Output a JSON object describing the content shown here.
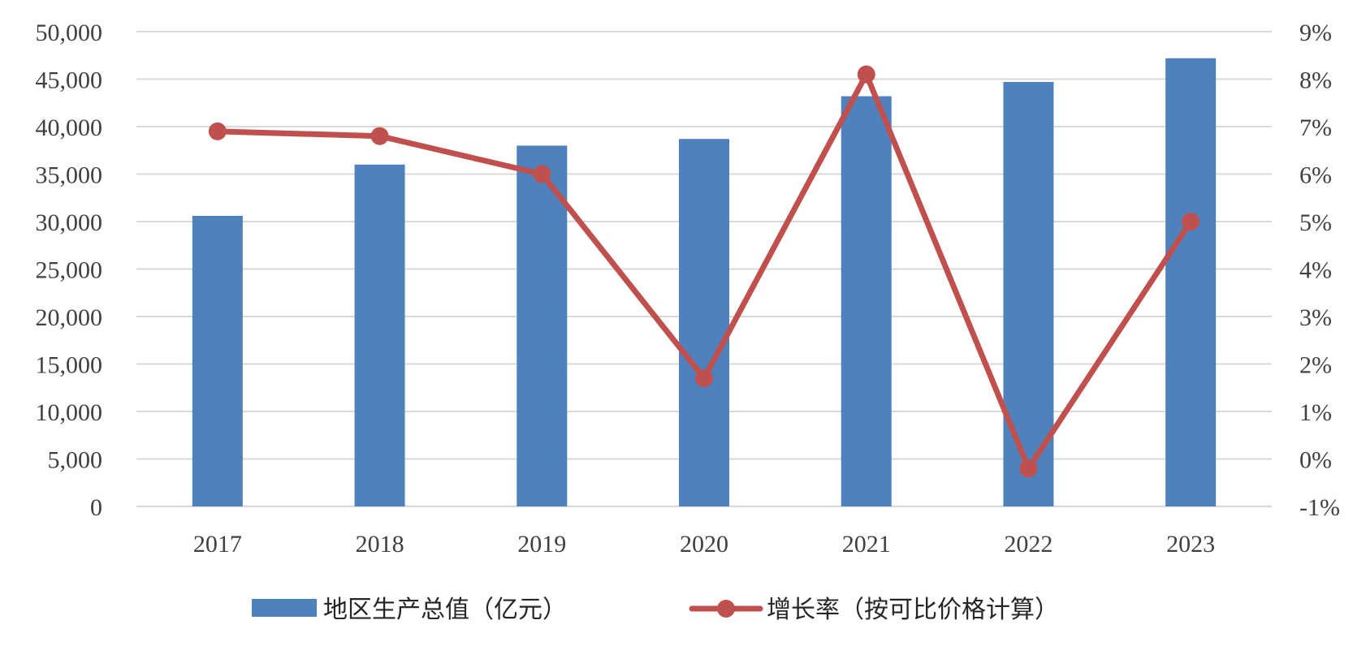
{
  "chart_data": {
    "type": "bar",
    "categories": [
      "2017",
      "2018",
      "2019",
      "2020",
      "2021",
      "2022",
      "2023"
    ],
    "series": [
      {
        "name": "地区生产总值（亿元）",
        "type": "bar",
        "axis": "left",
        "color": "#4f81bd",
        "values": [
          30600,
          36000,
          38000,
          38700,
          43200,
          44700,
          47200
        ]
      },
      {
        "name": "增长率（按可比价格计算）",
        "type": "line",
        "axis": "right",
        "color": "#c0504d",
        "unit": "%",
        "values": [
          6.9,
          6.8,
          6.0,
          1.7,
          8.1,
          -0.2,
          5.0
        ]
      }
    ],
    "left_axis": {
      "min": 0,
      "max": 50000,
      "step": 5000,
      "tick_labels": [
        "0",
        "5,000",
        "10,000",
        "15,000",
        "20,000",
        "25,000",
        "30,000",
        "35,000",
        "40,000",
        "45,000",
        "50,000"
      ]
    },
    "right_axis": {
      "min": -1,
      "max": 9,
      "step": 1,
      "tick_labels": [
        "-1%",
        "0%",
        "1%",
        "2%",
        "3%",
        "4%",
        "5%",
        "6%",
        "7%",
        "8%",
        "9%"
      ]
    },
    "title": "",
    "xlabel": "",
    "ylabel": "",
    "grid": true,
    "legend_position": "bottom"
  }
}
